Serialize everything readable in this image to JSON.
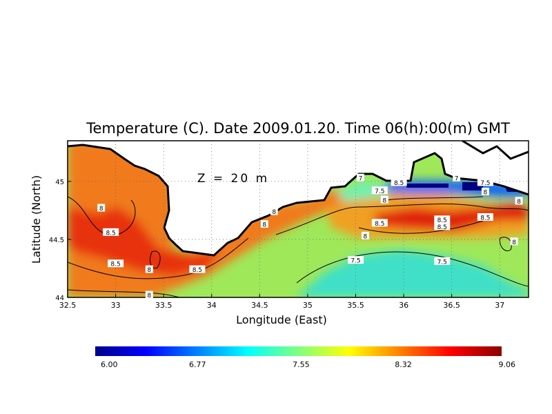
{
  "chart_data": {
    "type": "heatmap",
    "title": "Temperature (C). Date 2009.01.20. Time 06(h):00(m) GMT",
    "annotation": "Z = 20 m",
    "xlabel": "Longitude (East)",
    "ylabel": "Latitude (North)",
    "xlim": [
      32.5,
      37.3
    ],
    "ylim": [
      44.0,
      45.35
    ],
    "x_ticks": [
      "32.5",
      "33",
      "33.5",
      "34",
      "34.5",
      "35",
      "35.5",
      "36",
      "36.5",
      "37"
    ],
    "x_tick_values": [
      32.5,
      33,
      33.5,
      34,
      34.5,
      35,
      35.5,
      36,
      36.5,
      37
    ],
    "y_ticks": [
      "44",
      "44.5",
      "45"
    ],
    "y_tick_values": [
      44,
      44.5,
      45
    ],
    "grid": true,
    "colorbar": {
      "min": 6.0,
      "max": 9.06,
      "tick_labels": [
        "6.00",
        "6.77",
        "7.55",
        "8.32",
        "9.06"
      ],
      "tick_values": [
        6.0,
        6.77,
        7.55,
        8.32,
        9.06
      ],
      "colors": [
        "#00008b",
        "#0000ff",
        "#0080ff",
        "#00ffff",
        "#80ff80",
        "#ffff00",
        "#ff8000",
        "#ff0000",
        "#8b0000"
      ]
    },
    "contour_labels": [
      {
        "text": "8",
        "lon": 32.85,
        "lat": 44.77
      },
      {
        "text": "8.5",
        "lon": 32.95,
        "lat": 44.56
      },
      {
        "text": "8.5",
        "lon": 33.0,
        "lat": 44.29
      },
      {
        "text": "8",
        "lon": 33.35,
        "lat": 44.24
      },
      {
        "text": "8",
        "lon": 33.35,
        "lat": 44.02
      },
      {
        "text": "8.5",
        "lon": 33.85,
        "lat": 44.24
      },
      {
        "text": "8",
        "lon": 34.55,
        "lat": 44.63
      },
      {
        "text": "8",
        "lon": 34.65,
        "lat": 44.74
      },
      {
        "text": "7",
        "lon": 35.55,
        "lat": 45.03
      },
      {
        "text": "8.5",
        "lon": 35.95,
        "lat": 44.99
      },
      {
        "text": "7.5",
        "lon": 35.75,
        "lat": 44.92
      },
      {
        "text": "8",
        "lon": 35.8,
        "lat": 44.84
      },
      {
        "text": "8.5",
        "lon": 35.75,
        "lat": 44.64
      },
      {
        "text": "8",
        "lon": 35.6,
        "lat": 44.53
      },
      {
        "text": "7.5",
        "lon": 35.5,
        "lat": 44.32
      },
      {
        "text": "8.5",
        "lon": 36.4,
        "lat": 44.67
      },
      {
        "text": "8.5",
        "lon": 36.4,
        "lat": 44.61
      },
      {
        "text": "7",
        "lon": 36.55,
        "lat": 45.03
      },
      {
        "text": "7.5",
        "lon": 36.85,
        "lat": 44.99
      },
      {
        "text": "8",
        "lon": 36.85,
        "lat": 44.91
      },
      {
        "text": "8.5",
        "lon": 36.85,
        "lat": 44.69
      },
      {
        "text": "8",
        "lon": 37.2,
        "lat": 44.83
      },
      {
        "text": "8",
        "lon": 37.15,
        "lat": 44.48
      },
      {
        "text": "7.5",
        "lon": 36.4,
        "lat": 44.31
      }
    ]
  }
}
